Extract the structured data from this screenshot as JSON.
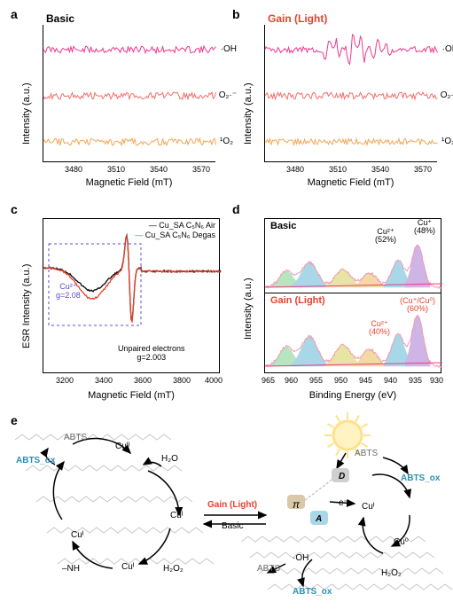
{
  "panel_a": {
    "label": "a",
    "title": "Basic",
    "title_color": "#000000",
    "ylabel": "Intensity (a.u.)",
    "xlabel": "Magnetic Field (mT)",
    "xticks": [
      "3480",
      "3510",
      "3540",
      "3570"
    ],
    "traces": [
      {
        "label": "·OH",
        "color": "#ec3a8b"
      },
      {
        "label": "O₂·⁻",
        "color": "#f26f6b"
      },
      {
        "label": "¹O₂",
        "color": "#f5a656"
      }
    ],
    "xlim": [
      3460,
      3580
    ]
  },
  "panel_b": {
    "label": "b",
    "title": "Gain (Light)",
    "title_color": "#e8412c",
    "ylabel": "Intensity (a.u.)",
    "xlabel": "Magnetic Field (mT)",
    "xticks": [
      "3480",
      "3510",
      "3540",
      "3570"
    ],
    "traces": [
      {
        "label": "·OH",
        "color": "#ec3a8b"
      },
      {
        "label": "O₂·⁻",
        "color": "#f26f6b"
      },
      {
        "label": "¹O₂",
        "color": "#f5a656"
      }
    ],
    "xlim": [
      3460,
      3580
    ]
  },
  "panel_c": {
    "label": "c",
    "legend": [
      {
        "text": "Cu_SA C₅N₆ Air",
        "color": "#000000"
      },
      {
        "text": "Cu_SA C₅N₆ Degas",
        "color": "#e8412c"
      }
    ],
    "ylabel": "ESR Intensity (a.u.)",
    "xlabel": "Magnetic Field (mT)",
    "xticks": [
      "3200",
      "3400",
      "3600",
      "3800",
      "4000"
    ],
    "annot1_a": "Cu²⁺",
    "annot1_b": "g=2.08",
    "annot2_a": "Unpaired electrons",
    "annot2_b": "g=2.003",
    "box_color": "#5b4bcc",
    "xlim": [
      3100,
      4000
    ]
  },
  "panel_d": {
    "label": "d",
    "top_title": "Basic",
    "top_title_color": "#000000",
    "bot_title": "Gain (Light)",
    "bot_title_color": "#e8412c",
    "ylabel": "Intensity (a.u.)",
    "xlabel": "Binding Energy (eV)",
    "xticks": [
      "965",
      "960",
      "955",
      "950",
      "945",
      "940",
      "935",
      "930"
    ],
    "top_peaks": [
      {
        "text": "Cu²⁺\n(52%)",
        "color": "#000000"
      },
      {
        "text": "Cu⁺\n(48%)",
        "color": "#000000"
      }
    ],
    "bot_peaks": [
      {
        "text": "Cu²⁺\n(40%)",
        "color": "#e8412c"
      },
      {
        "text": "(Cu⁺/Cu⁰)\n(60%)",
        "color": "#e8412c"
      }
    ],
    "fit_colors": {
      "raw": "#f29aae",
      "sum": "#ec3a8b",
      "p1": "#b5e6bf",
      "p2": "#a8d8e8",
      "p3": "#f2dba3",
      "p4": "#cfb4e6",
      "p5": "#e8e5a4"
    }
  },
  "panel_e": {
    "label": "e",
    "labels": {
      "abts_ox": "ABTS_ox",
      "abts": "ABTS",
      "cu2": "Cuᴵᴵ",
      "cu1": "Cuᴵ",
      "cu0": "Cu⁰",
      "h2o": "H₂O",
      "h2o2": "H₂O₂",
      "nh": "–NH",
      "oh": "·OH",
      "gain": "Gain (Light)",
      "basic": "Basic",
      "pi": "π",
      "e": "e⁻",
      "d": "D",
      "a": "A"
    },
    "colors": {
      "abts_ox": "#2c8fb5",
      "abts": "#6b6b6b",
      "gain": "#e8412c",
      "basic": "#000000",
      "pi_badge": "#d9c9a8",
      "a_badge": "#a8d8e8",
      "d_badge": "#cfcfcf",
      "sun_outer": "#ffe18a",
      "sun_inner": "#fff3c4",
      "mol_gray": "#c8c6cc",
      "arrow": "#000000"
    }
  }
}
